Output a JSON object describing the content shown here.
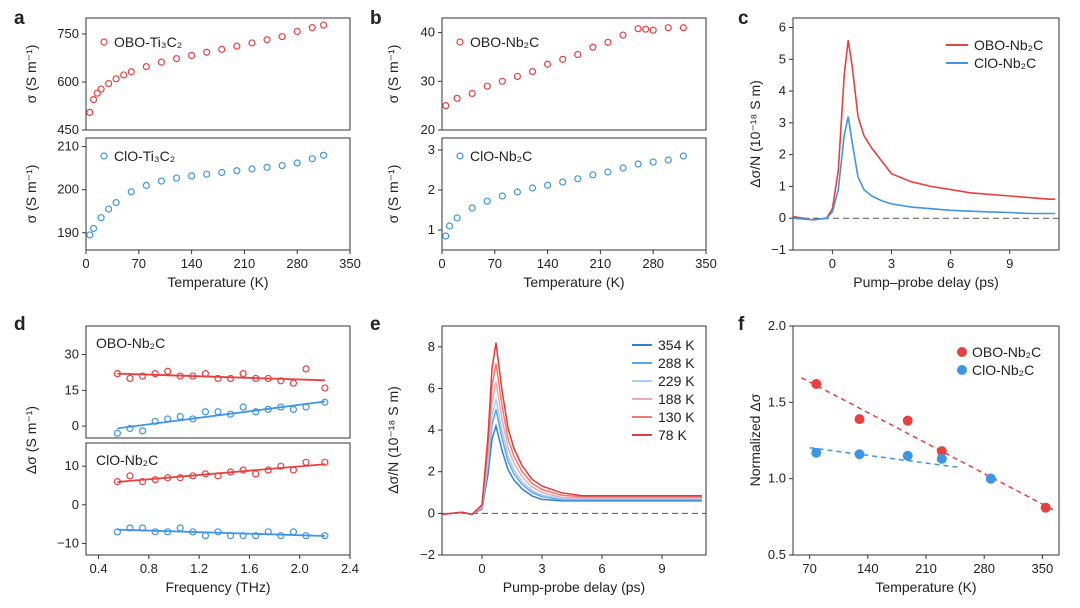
{
  "colors": {
    "red": "#e8403f",
    "blue": "#3d95e4"
  },
  "panels": {
    "a": {
      "letter": "a",
      "xlabel": "Temperature (K)",
      "xticks": [
        "0",
        "70",
        "140",
        "210",
        "280",
        "350"
      ],
      "top": {
        "ylabel": "σ (S m⁻¹)",
        "yticks": [
          "450",
          "600",
          "750"
        ],
        "legend": "OBO-Ti₃C₂"
      },
      "bottom": {
        "ylabel": "σ (S m⁻¹)",
        "yticks": [
          "190",
          "200",
          "210"
        ],
        "legend": "ClO-Ti₃C₂"
      }
    },
    "b": {
      "letter": "b",
      "xlabel": "Temperature (K)",
      "xticks": [
        "0",
        "70",
        "140",
        "210",
        "280",
        "350"
      ],
      "top": {
        "ylabel": "σ (S m⁻¹)",
        "yticks": [
          "20",
          "30",
          "40"
        ],
        "legend": "OBO-Nb₂C"
      },
      "bottom": {
        "ylabel": "σ (S m⁻¹)",
        "yticks": [
          "1",
          "2",
          "3"
        ],
        "legend": "ClO-Nb₂C"
      }
    },
    "c": {
      "letter": "c",
      "xlabel": "Pump–probe delay (ps)",
      "ylabel": "Δσ/N (10⁻¹⁸ S m)",
      "xticks": [
        "0",
        "3",
        "6",
        "9"
      ],
      "yticks": [
        "−1",
        "0",
        "1",
        "2",
        "3",
        "4",
        "5",
        "6"
      ],
      "legend": [
        "OBO-Nb₂C",
        "ClO-Nb₂C"
      ]
    },
    "d": {
      "letter": "d",
      "xlabel": "Frequency (THz)",
      "ylabel": "Δσ (S m⁻¹)",
      "xticks": [
        "0.4",
        "0.8",
        "1.2",
        "1.6",
        "2.0",
        "2.4"
      ],
      "top": {
        "yticks": [
          "0",
          "15",
          "30"
        ],
        "legend": "OBO-Nb₂C"
      },
      "bottom": {
        "yticks": [
          "−10",
          "0",
          "10"
        ],
        "legend": "ClO-Nb₂C"
      }
    },
    "e": {
      "letter": "e",
      "xlabel": "Pump-probe delay (ps)",
      "ylabel": "Δσ/N (10⁻¹⁸ S m)",
      "xticks": [
        "0",
        "3",
        "6",
        "9"
      ],
      "yticks": [
        "−2",
        "0",
        "2",
        "4",
        "6",
        "8"
      ],
      "legend": [
        "354 K",
        "288 K",
        "229 K",
        "188 K",
        "130 K",
        "78 K"
      ]
    },
    "f": {
      "letter": "f",
      "xlabel": "Temperature (K)",
      "ylabel": "Normalized Δσ",
      "xticks": [
        "70",
        "140",
        "210",
        "280",
        "350"
      ],
      "yticks": [
        "0.5",
        "1.0",
        "1.5",
        "2.0"
      ],
      "legend": [
        "OBO-Nb₂C",
        "ClO-Nb₂C"
      ]
    }
  },
  "chart_data": [
    {
      "panel": "a",
      "type": "scatter",
      "xlabel": "Temperature (K)",
      "ylabel": "σ (S m⁻¹)",
      "xlim": [
        0,
        350
      ],
      "subplots": [
        {
          "name": "OBO-Ti₃C₂",
          "ylim": [
            450,
            800
          ],
          "x": [
            5,
            10,
            15,
            20,
            30,
            40,
            50,
            60,
            80,
            100,
            120,
            140,
            160,
            180,
            200,
            220,
            240,
            260,
            280,
            300,
            315
          ],
          "y": [
            505,
            545,
            565,
            578,
            595,
            610,
            622,
            632,
            648,
            662,
            673,
            683,
            693,
            702,
            712,
            722,
            732,
            742,
            758,
            770,
            778
          ]
        },
        {
          "name": "ClO-Ti₃C₂",
          "ylim": [
            186,
            212
          ],
          "x": [
            5,
            10,
            20,
            30,
            40,
            60,
            80,
            100,
            120,
            140,
            160,
            180,
            200,
            220,
            240,
            260,
            280,
            300,
            315
          ],
          "y": [
            189.5,
            191,
            193.5,
            195.5,
            197,
            199.5,
            201,
            202,
            202.7,
            203.2,
            203.6,
            204,
            204.4,
            204.8,
            205.2,
            205.6,
            206.2,
            207.2,
            208
          ]
        }
      ]
    },
    {
      "panel": "b",
      "type": "scatter",
      "xlabel": "Temperature (K)",
      "ylabel": "σ (S m⁻¹)",
      "xlim": [
        0,
        350
      ],
      "subplots": [
        {
          "name": "OBO-Nb₂C",
          "ylim": [
            20,
            43
          ],
          "x": [
            5,
            20,
            40,
            60,
            80,
            100,
            120,
            140,
            160,
            180,
            200,
            220,
            240,
            260,
            270,
            280,
            300,
            320
          ],
          "y": [
            25,
            26.5,
            27.5,
            29,
            30,
            31,
            32,
            33.5,
            34.5,
            35.5,
            37,
            38,
            39.5,
            40.8,
            40.7,
            40.5,
            41,
            41
          ]
        },
        {
          "name": "ClO-Nb₂C",
          "ylim": [
            0.5,
            3.3
          ],
          "x": [
            5,
            10,
            20,
            40,
            60,
            80,
            100,
            120,
            140,
            160,
            180,
            200,
            220,
            240,
            260,
            280,
            300,
            320
          ],
          "y": [
            0.85,
            1.1,
            1.3,
            1.55,
            1.72,
            1.85,
            1.95,
            2.05,
            2.12,
            2.2,
            2.28,
            2.38,
            2.45,
            2.55,
            2.65,
            2.7,
            2.75,
            2.85
          ]
        }
      ]
    },
    {
      "panel": "c",
      "type": "line",
      "xlabel": "Pump–probe delay (ps)",
      "ylabel": "Δσ/N (10⁻¹⁸ S m)",
      "xlim": [
        -2,
        11.5
      ],
      "ylim": [
        -1,
        6.3
      ],
      "series": [
        {
          "name": "OBO-Nb₂C",
          "x": [
            -2,
            -1,
            -0.3,
            0,
            0.3,
            0.6,
            0.8,
            1.0,
            1.3,
            1.6,
            2,
            2.5,
            3,
            4,
            5,
            6,
            7,
            8,
            9,
            10,
            11,
            11.3
          ],
          "y": [
            0.05,
            -0.05,
            0,
            0.3,
            1.5,
            4.5,
            5.6,
            4.8,
            3.2,
            2.6,
            2.2,
            1.8,
            1.4,
            1.15,
            1.0,
            0.9,
            0.8,
            0.75,
            0.7,
            0.65,
            0.6,
            0.6
          ]
        },
        {
          "name": "ClO-Nb₂C",
          "x": [
            -2,
            -1,
            -0.3,
            0,
            0.3,
            0.6,
            0.8,
            1.0,
            1.3,
            1.6,
            2,
            2.5,
            3,
            4,
            5,
            6,
            7,
            8,
            9,
            10,
            11,
            11.3
          ],
          "y": [
            0.0,
            -0.05,
            0,
            0.2,
            0.9,
            2.6,
            3.2,
            2.4,
            1.3,
            0.9,
            0.7,
            0.55,
            0.45,
            0.35,
            0.3,
            0.25,
            0.22,
            0.2,
            0.18,
            0.15,
            0.15,
            0.15
          ]
        }
      ]
    },
    {
      "panel": "d",
      "type": "scatter",
      "xlabel": "Frequency (THz)",
      "ylabel": "Δσ (S m⁻¹)",
      "xlim": [
        0.3,
        2.4
      ],
      "subplots": [
        {
          "name": "top",
          "ylim": [
            -5,
            42
          ],
          "series": [
            {
              "name": "OBO-Nb₂C",
              "x": [
                0.55,
                0.65,
                0.75,
                0.85,
                0.95,
                1.05,
                1.15,
                1.25,
                1.35,
                1.45,
                1.55,
                1.65,
                1.75,
                1.85,
                1.95,
                2.05,
                2.2
              ],
              "y": [
                22,
                20,
                21,
                22,
                23,
                21,
                21,
                22,
                20,
                20,
                22,
                20,
                20,
                19,
                18,
                24,
                16
              ]
            },
            {
              "name": "ClO-Nb₂C",
              "x": [
                0.55,
                0.65,
                0.75,
                0.85,
                0.95,
                1.05,
                1.15,
                1.25,
                1.35,
                1.45,
                1.55,
                1.65,
                1.75,
                1.85,
                1.95,
                2.05,
                2.2
              ],
              "y": [
                -3,
                -1,
                -2,
                2,
                3,
                4,
                3,
                6,
                6,
                5,
                8,
                6,
                7,
                8,
                7,
                8,
                10
              ]
            }
          ]
        },
        {
          "name": "bottom",
          "ylim": [
            -13,
            16
          ],
          "series": [
            {
              "name": "OBO-Nb₂C",
              "x": [
                0.55,
                0.65,
                0.75,
                0.85,
                0.95,
                1.05,
                1.15,
                1.25,
                1.35,
                1.45,
                1.55,
                1.65,
                1.75,
                1.85,
                1.95,
                2.05,
                2.2
              ],
              "y": [
                6,
                7.5,
                6,
                6.5,
                7,
                7,
                7.5,
                8,
                7.5,
                8.5,
                9,
                8,
                9,
                10,
                9,
                11,
                11
              ]
            },
            {
              "name": "ClO-Nb₂C",
              "x": [
                0.55,
                0.65,
                0.75,
                0.85,
                0.95,
                1.05,
                1.15,
                1.25,
                1.35,
                1.45,
                1.55,
                1.65,
                1.75,
                1.85,
                1.95,
                2.05,
                2.2
              ],
              "y": [
                -7,
                -6,
                -6,
                -7,
                -7,
                -6,
                -7,
                -8,
                -7,
                -8,
                -8,
                -8,
                -7,
                -8,
                -7,
                -8,
                -8
              ]
            }
          ]
        }
      ]
    },
    {
      "panel": "e",
      "type": "line",
      "xlabel": "Pump-probe delay (ps)",
      "ylabel": "Δσ/N (10⁻¹⁸ S m)",
      "xlim": [
        -2,
        11.2
      ],
      "ylim": [
        -2,
        9
      ],
      "peak_x": [
        -2,
        -1,
        -0.5,
        0,
        0.3,
        0.5,
        0.7,
        1.0,
        1.3,
        1.6,
        2,
        2.5,
        3,
        4,
        5,
        6,
        7,
        8,
        9,
        10,
        11
      ],
      "series": [
        {
          "name": "354 K",
          "color": "#2f7fd6",
          "peak": 4.2,
          "tail": 0.6
        },
        {
          "name": "288 K",
          "color": "#5aa8ec",
          "peak": 5.0,
          "tail": 0.65
        },
        {
          "name": "229 K",
          "color": "#a8cff4",
          "peak": 5.5,
          "tail": 0.7
        },
        {
          "name": "188 K",
          "color": "#f3a9ae",
          "peak": 6.3,
          "tail": 0.75
        },
        {
          "name": "130 K",
          "color": "#f07a70",
          "peak": 7.2,
          "tail": 0.8
        },
        {
          "name": "78 K",
          "color": "#e33a3a",
          "peak": 8.2,
          "tail": 0.85
        }
      ]
    },
    {
      "panel": "f",
      "type": "scatter",
      "xlabel": "Temperature (K)",
      "ylabel": "Normalized Δσ",
      "xlim": [
        50,
        370
      ],
      "ylim": [
        0.5,
        2.0
      ],
      "series": [
        {
          "name": "OBO-Nb₂C",
          "x": [
            78,
            130,
            188,
            229,
            288,
            354
          ],
          "y": [
            1.62,
            1.39,
            1.38,
            1.18,
            1.0,
            0.81
          ]
        },
        {
          "name": "ClO-Nb₂C",
          "x": [
            78,
            130,
            188,
            229,
            288
          ],
          "y": [
            1.17,
            1.16,
            1.15,
            1.13,
            1.0
          ]
        }
      ]
    }
  ]
}
